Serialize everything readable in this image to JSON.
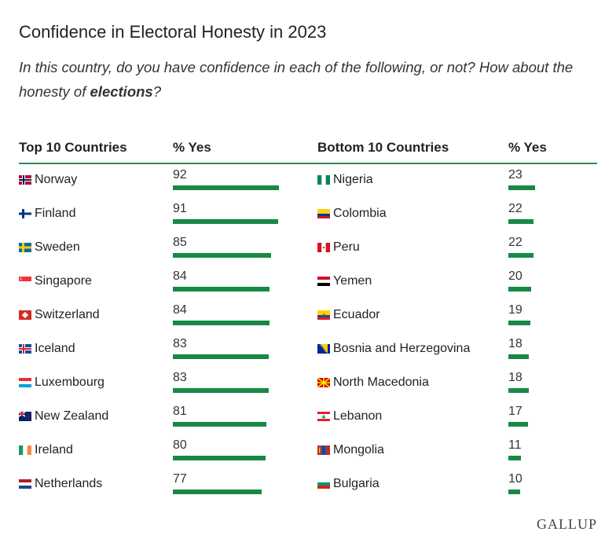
{
  "title": "Confidence in Electoral Honesty in 2023",
  "subtitle": {
    "part1": "In this country, do you have confidence in each of the following, or not? How about the honesty of ",
    "emphasis": "elections",
    "part2": "?"
  },
  "headers": {
    "top_countries": "Top 10 Countries",
    "top_value": "% Yes",
    "bottom_countries": "Bottom 10 Countries",
    "bottom_value": "% Yes"
  },
  "accent_color": "#168a45",
  "logo": "GALLUP",
  "chart_data": {
    "type": "table",
    "title": "Confidence in Electoral Honesty in 2023",
    "value_label": "% Yes",
    "top10": [
      {
        "country": "Norway",
        "value": 92,
        "flag": "norway-flag-icon"
      },
      {
        "country": "Finland",
        "value": 91,
        "flag": "finland-flag-icon"
      },
      {
        "country": "Sweden",
        "value": 85,
        "flag": "sweden-flag-icon"
      },
      {
        "country": "Singapore",
        "value": 84,
        "flag": "singapore-flag-icon"
      },
      {
        "country": "Switzerland",
        "value": 84,
        "flag": "switzerland-flag-icon"
      },
      {
        "country": "Iceland",
        "value": 83,
        "flag": "iceland-flag-icon"
      },
      {
        "country": "Luxembourg",
        "value": 83,
        "flag": "luxembourg-flag-icon"
      },
      {
        "country": "New Zealand",
        "value": 81,
        "flag": "new-zealand-flag-icon"
      },
      {
        "country": "Ireland",
        "value": 80,
        "flag": "ireland-flag-icon"
      },
      {
        "country": "Netherlands",
        "value": 77,
        "flag": "netherlands-flag-icon"
      }
    ],
    "bottom10": [
      {
        "country": "Nigeria",
        "value": 23,
        "flag": "nigeria-flag-icon"
      },
      {
        "country": "Colombia",
        "value": 22,
        "flag": "colombia-flag-icon"
      },
      {
        "country": "Peru",
        "value": 22,
        "flag": "peru-flag-icon"
      },
      {
        "country": "Yemen",
        "value": 20,
        "flag": "yemen-flag-icon"
      },
      {
        "country": "Ecuador",
        "value": 19,
        "flag": "ecuador-flag-icon"
      },
      {
        "country": "Bosnia and Herzegovina",
        "value": 18,
        "flag": "bosnia-flag-icon"
      },
      {
        "country": "North Macedonia",
        "value": 18,
        "flag": "north-macedonia-flag-icon"
      },
      {
        "country": "Lebanon",
        "value": 17,
        "flag": "lebanon-flag-icon"
      },
      {
        "country": "Mongolia",
        "value": 11,
        "flag": "mongolia-flag-icon"
      },
      {
        "country": "Bulgaria",
        "value": 10,
        "flag": "bulgaria-flag-icon"
      }
    ]
  }
}
